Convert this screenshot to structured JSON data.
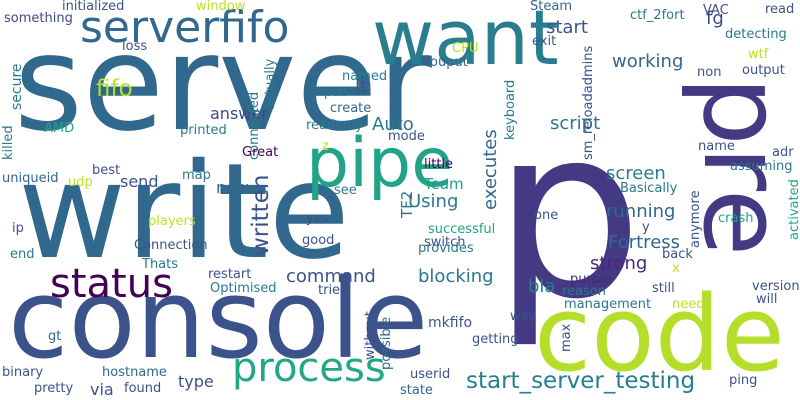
{
  "words": [
    {
      "text": "server",
      "color": "#31688e"
    },
    {
      "text": "p",
      "color": "#443a83"
    },
    {
      "text": "write",
      "color": "#31688e"
    },
    {
      "text": "console",
      "color": "#3b528b"
    },
    {
      "text": "code",
      "color": "#b5de2b"
    },
    {
      "text": "pre",
      "color": "#443a83"
    },
    {
      "text": "want",
      "color": "#287d8e"
    },
    {
      "text": "pipe",
      "color": "#20a386"
    },
    {
      "text": "serverfifo",
      "color": "#31688e"
    },
    {
      "text": "status",
      "color": "#440154"
    },
    {
      "text": "process",
      "color": "#22a884"
    },
    {
      "text": "start_server_testing",
      "color": "#287d8e"
    },
    {
      "text": "written",
      "color": "#3b528b"
    },
    {
      "text": "fifo",
      "color": "#bddf26"
    },
    {
      "text": "command",
      "color": "#3b528b"
    },
    {
      "text": "blocking",
      "color": "#2a788e"
    },
    {
      "text": "Fortress",
      "color": "#31688e"
    },
    {
      "text": "screen",
      "color": "#287d8e"
    },
    {
      "text": "running",
      "color": "#31688e"
    },
    {
      "text": "strong",
      "color": "#482878"
    },
    {
      "text": "bla",
      "color": "#2a788e"
    },
    {
      "text": "Using",
      "color": "#2a788e"
    },
    {
      "text": "script",
      "color": "#2a788e"
    },
    {
      "text": "working",
      "color": "#31688e"
    },
    {
      "text": "start",
      "color": "#3b528b"
    },
    {
      "text": "fg",
      "color": "#3e4989"
    },
    {
      "text": "executes",
      "color": "#31688e"
    },
    {
      "text": "Auto",
      "color": "#2a788e"
    },
    {
      "text": "lt",
      "color": "#3b528b"
    },
    {
      "text": "answer",
      "color": "#3e4989"
    },
    {
      "text": "send",
      "color": "#3b528b"
    },
    {
      "text": "now",
      "color": "#31688e"
    },
    {
      "text": "type",
      "color": "#3b528b"
    },
    {
      "text": "via",
      "color": "#3b528b"
    },
    {
      "text": "Team",
      "color": "#1fa088"
    },
    {
      "text": "TF2",
      "color": "#2a788e"
    },
    {
      "text": "secure",
      "color": "#287d8e"
    },
    {
      "text": "mkfifo",
      "color": "#3b528b"
    },
    {
      "text": "initialized",
      "color": "#3b528b"
    },
    {
      "text": "something",
      "color": "#3e4989"
    },
    {
      "text": "window",
      "color": "#bddf26"
    },
    {
      "text": "Steam",
      "color": "#31688e"
    },
    {
      "text": "read",
      "color": "#3b528b"
    },
    {
      "text": "VAC",
      "color": "#3b528b"
    },
    {
      "text": "ctf_2fort",
      "color": "#2a788e"
    },
    {
      "text": "exit",
      "color": "#3b528b"
    },
    {
      "text": "detecting",
      "color": "#2a788e"
    },
    {
      "text": "loss",
      "color": "#3b528b"
    },
    {
      "text": "CPU",
      "color": "#bddf26"
    },
    {
      "text": "wtf",
      "color": "#bddf26"
    },
    {
      "text": "ouput",
      "color": "#31688e"
    },
    {
      "text": "output",
      "color": "#3b528b"
    },
    {
      "text": "non",
      "color": "#3b528b"
    },
    {
      "text": "named",
      "color": "#287d8e"
    },
    {
      "text": "input",
      "color": "#2a788e"
    },
    {
      "text": "create",
      "color": "#31688e"
    },
    {
      "text": "readonly",
      "color": "#2a788e"
    },
    {
      "text": "printed",
      "color": "#2a788e"
    },
    {
      "text": "actually",
      "color": "#2a788e"
    },
    {
      "text": "connected",
      "color": "#2a788e"
    },
    {
      "text": "mode",
      "color": "#3b528b"
    },
    {
      "text": "keyboard",
      "color": "#2a788e"
    },
    {
      "text": "sm_reloadadmins",
      "color": "#3b528b"
    },
    {
      "text": "name",
      "color": "#3b528b"
    },
    {
      "text": "adr",
      "color": "#3b528b"
    },
    {
      "text": "assuming",
      "color": "#2a788e"
    },
    {
      "text": "activated",
      "color": "#20a386"
    },
    {
      "text": "AMD",
      "color": "#20a386"
    },
    {
      "text": "killed",
      "color": "#2a788e"
    },
    {
      "text": "best",
      "color": "#3b528b"
    },
    {
      "text": "uniqueid",
      "color": "#31688e"
    },
    {
      "text": "udp",
      "color": "#bddf26"
    },
    {
      "text": "map",
      "color": "#2a788e"
    },
    {
      "text": "Great",
      "color": "#440154"
    },
    {
      "text": "z",
      "color": "#bddf26"
    },
    {
      "text": "little",
      "color": "#440154"
    },
    {
      "text": "see",
      "color": "#2a788e"
    },
    {
      "text": "successful",
      "color": "#20a386"
    },
    {
      "text": "Basically",
      "color": "#2a788e"
    },
    {
      "text": "y",
      "color": "#3b528b"
    },
    {
      "text": "back",
      "color": "#3b528b"
    },
    {
      "text": "x",
      "color": "#bddf26"
    },
    {
      "text": "anymore",
      "color": "#3b528b"
    },
    {
      "text": "crash",
      "color": "#20a386"
    },
    {
      "text": "players",
      "color": "#bddf26"
    },
    {
      "text": "ip",
      "color": "#3b528b"
    },
    {
      "text": "Connection",
      "color": "#3b528b"
    },
    {
      "text": "yes",
      "color": "#3b528b"
    },
    {
      "text": "good",
      "color": "#3b528b"
    },
    {
      "text": "switch",
      "color": "#3b528b"
    },
    {
      "text": "one",
      "color": "#3b528b"
    },
    {
      "text": "end",
      "color": "#2a788e"
    },
    {
      "text": "provides",
      "color": "#2a788e"
    },
    {
      "text": "Thats",
      "color": "#2a788e"
    },
    {
      "text": "restart",
      "color": "#3b528b"
    },
    {
      "text": "Optimised",
      "color": "#2a788e"
    },
    {
      "text": "tried",
      "color": "#3b528b"
    },
    {
      "text": "purple",
      "color": "#482878"
    },
    {
      "text": "reason",
      "color": "#2a788e"
    },
    {
      "text": "still",
      "color": "#3b528b"
    },
    {
      "text": "version",
      "color": "#3b528b"
    },
    {
      "text": "will",
      "color": "#3b528b"
    },
    {
      "text": "need",
      "color": "#bddf26"
    },
    {
      "text": "management",
      "color": "#2a788e"
    },
    {
      "text": "without",
      "color": "#3b528b"
    },
    {
      "text": "possible",
      "color": "#31688e"
    },
    {
      "text": "way",
      "color": "#3b528b"
    },
    {
      "text": "getting",
      "color": "#3b528b"
    },
    {
      "text": "max",
      "color": "#3b528b"
    },
    {
      "text": "gt",
      "color": "#31688e"
    },
    {
      "text": "binary",
      "color": "#3b528b"
    },
    {
      "text": "hostname",
      "color": "#31688e"
    },
    {
      "text": "pretty",
      "color": "#3b528b"
    },
    {
      "text": "found",
      "color": "#3b528b"
    },
    {
      "text": "userid",
      "color": "#3b528b"
    },
    {
      "text": "state",
      "color": "#31688e"
    },
    {
      "text": "ping",
      "color": "#3b528b"
    }
  ]
}
